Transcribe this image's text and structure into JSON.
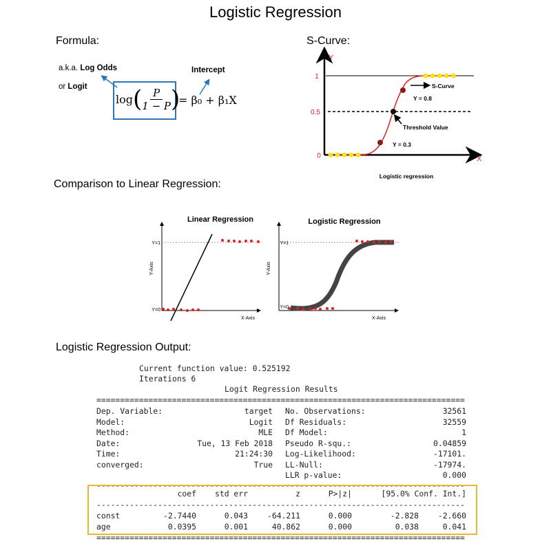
{
  "title": "Logistic Regression",
  "formula": {
    "heading": "Formula:",
    "aka_prefix": "a.k.a. ",
    "aka_bold": "Log Odds",
    "or_prefix": "or ",
    "or_bold": "Logit",
    "intercept_label": "Intercept",
    "log": "log",
    "numerator": "P",
    "denominator": "1 − P",
    "rhs": "= β₀ + β₁X",
    "box_color": "#2e75b6",
    "arrow_color": "#2e75b6"
  },
  "s_curve": {
    "heading": "S-Curve:",
    "y_axis": "Y",
    "x_axis": "X",
    "ticks": [
      "1",
      "0.5",
      "0"
    ],
    "curve_label": "S-Curve",
    "y08_label": "Y = 0.8",
    "threshold_label": "Threshold Value",
    "y03_label": "Y = 0.3",
    "caption": "Logistic regression",
    "curve_color": "#e0201b",
    "dot_color": "#f5e31a",
    "point_color": "#8b1a1a"
  },
  "comparison": {
    "heading": "Comparison to Linear Regression:",
    "linear": {
      "title": "Linear Regression",
      "y_label": "Y-Axis",
      "x_label": "X-Axis",
      "y1": "Y=1",
      "y0": "Y=0"
    },
    "logistic": {
      "title": "Logistic Regression",
      "y_label": "Y-Axis",
      "x_label": "X-Axis",
      "y1": "Y=1",
      "y0": "Y=0"
    },
    "dot_color": "#e02020"
  },
  "output": {
    "heading": "Logistic Regression Output:",
    "function_value": "Current function value: 0.525192",
    "iterations": "Iterations 6",
    "results_title": "Logit Regression Results",
    "summary": [
      [
        "Dep. Variable:",
        "target",
        "No. Observations:",
        "32561"
      ],
      [
        "Model:",
        "Logit",
        "Df Residuals:",
        "32559"
      ],
      [
        "Method:",
        "MLE",
        "Df Model:",
        "1"
      ],
      [
        "Date:",
        "Tue, 13 Feb 2018",
        "Pseudo R-squ.:",
        "0.04859"
      ],
      [
        "Time:",
        "21:24:30",
        "Log-Likelihood:",
        "-17101."
      ],
      [
        "converged:",
        "True",
        "LL-Null:",
        "-17974."
      ],
      [
        "",
        "",
        "LLR p-value:",
        "0.000"
      ]
    ],
    "coef_headers": [
      "coef",
      "std err",
      "z",
      "P>|z|",
      "[95.0% Conf. Int.]"
    ],
    "coef_rows": [
      [
        "const",
        "-2.7440",
        "0.043",
        "-64.211",
        "0.000",
        "-2.828",
        "-2.660"
      ],
      [
        "age",
        "0.0395",
        "0.001",
        "40.862",
        "0.000",
        "0.038",
        "0.041"
      ]
    ],
    "double_rule": "==============================================================================",
    "single_rule": "------------------------------------------------------------------------------",
    "highlight_color": "#e8b830"
  }
}
